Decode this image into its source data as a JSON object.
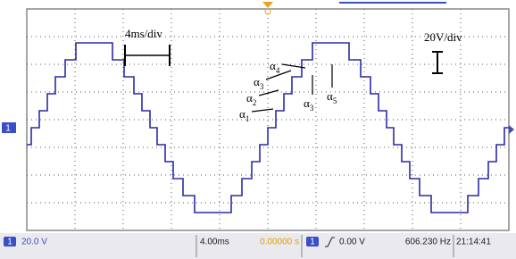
{
  "scale_labels": {
    "time": "4ms/div",
    "voltage": "20V/div"
  },
  "angles": [
    {
      "symbol": "α",
      "index": "1"
    },
    {
      "symbol": "α",
      "index": "2"
    },
    {
      "symbol": "α",
      "index": "3"
    },
    {
      "symbol": "α",
      "index": "4"
    },
    {
      "symbol": "α",
      "index": "3"
    },
    {
      "symbol": "α",
      "index": "5"
    }
  ],
  "left_marker": "1",
  "status_bar": {
    "channel": "1",
    "volts_per_div": "20.0 V",
    "time_per_div": "4.00ms",
    "trigger_offset": "0.00000 s",
    "trigger_channel": "1",
    "trigger_level": "0.00 V",
    "frequency": "606.230 Hz",
    "clock": "21:14:41"
  }
}
